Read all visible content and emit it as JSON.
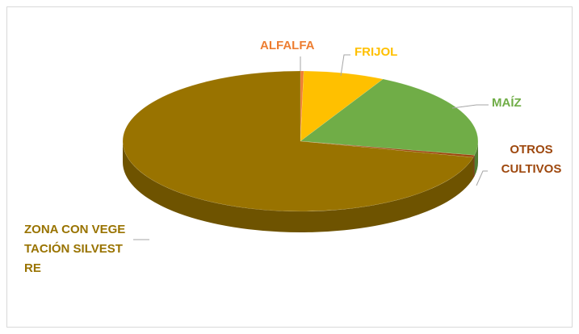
{
  "chart_data": {
    "type": "pie",
    "categories": [
      "ALFALFA",
      "FRIJOL",
      "MAÍZ",
      "OTROS CULTIVOS",
      "ZONA CON VEGETACIÓN SILVESTRE"
    ],
    "values": [
      0.3,
      7.4,
      20.5,
      0.5,
      71.3
    ],
    "colors": [
      "#ed7d31",
      "#ffc000",
      "#70ad47",
      "#9e480e",
      "#997300"
    ]
  }
}
